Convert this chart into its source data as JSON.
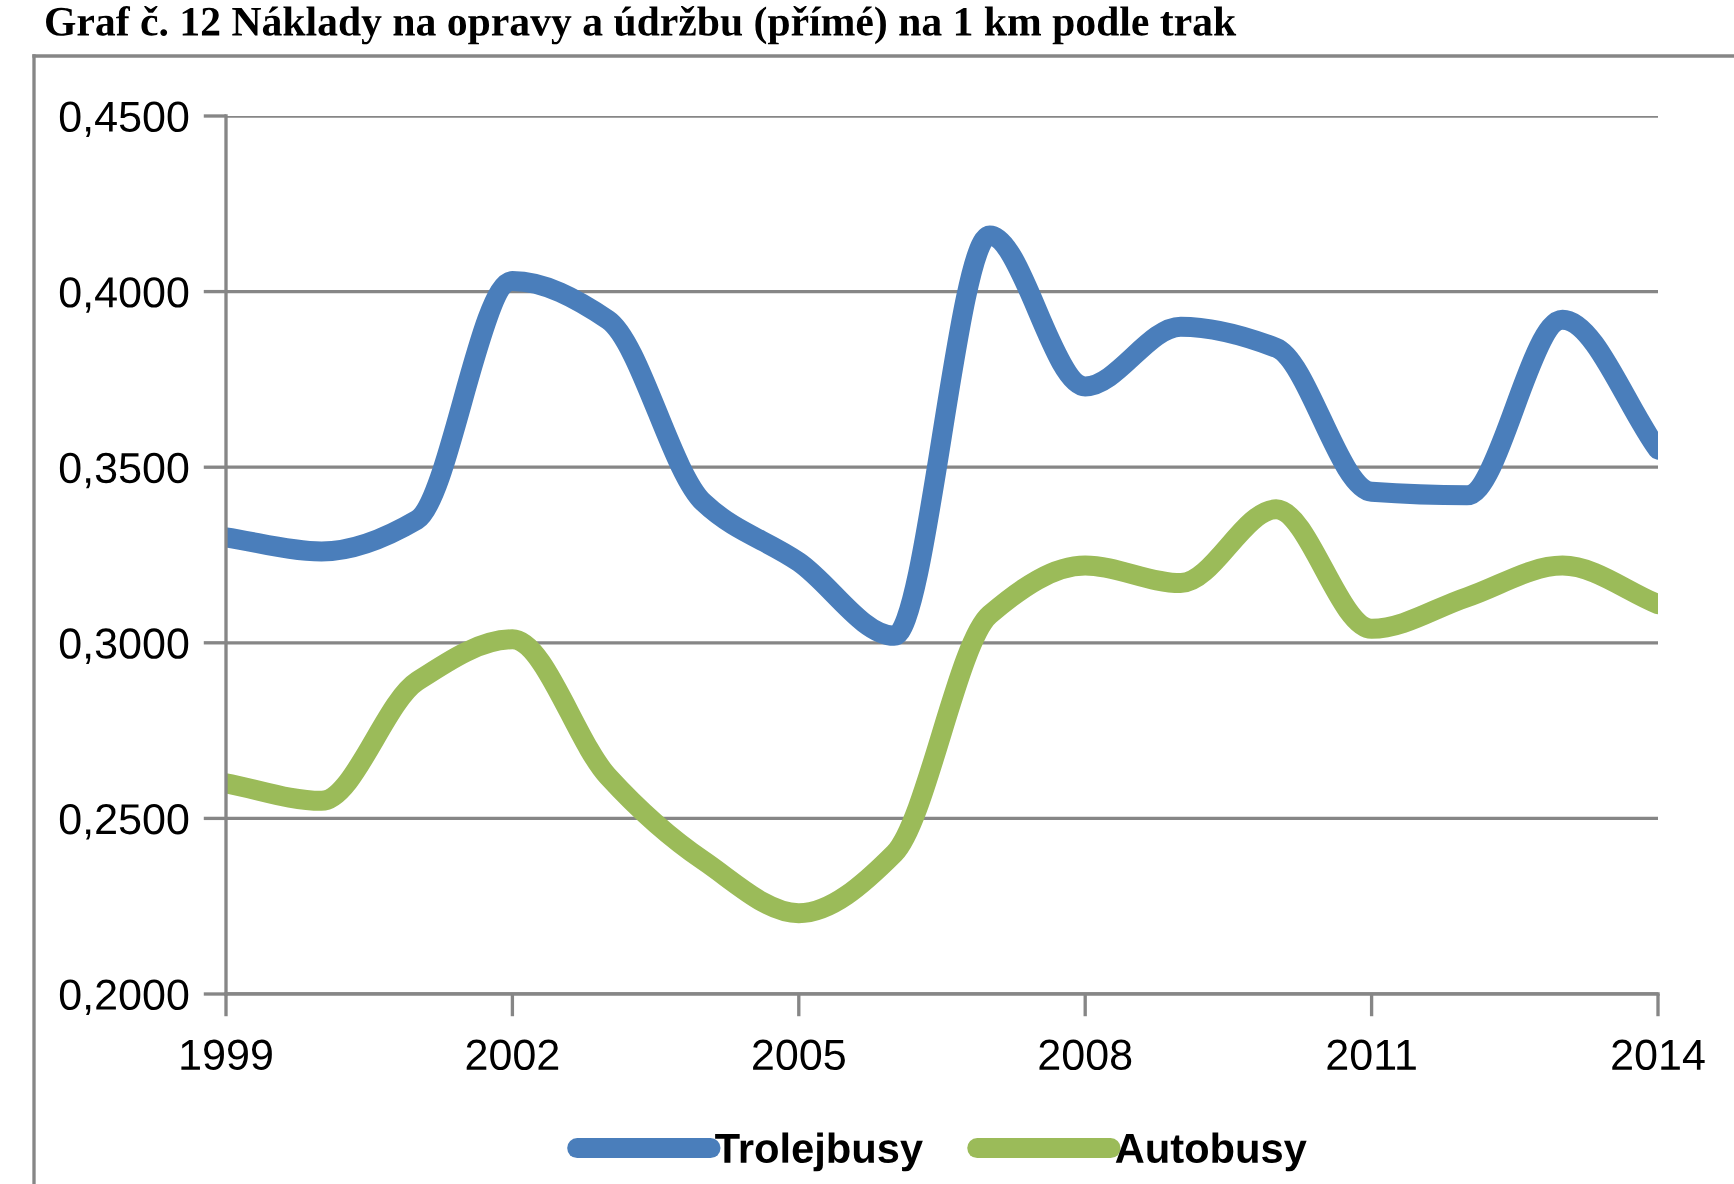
{
  "chart_data": {
    "type": "line",
    "title": "Graf č. 12 Náklady na opravy a údržbu (přímé) na 1 km podle trak",
    "x": [
      1999,
      2000,
      2001,
      2002,
      2003,
      2004,
      2005,
      2006,
      2007,
      2008,
      2009,
      2010,
      2011,
      2012,
      2013,
      2014
    ],
    "series": [
      {
        "name": "Trolejbusy",
        "color": "#4a7ebb",
        "values": [
          0.33,
          0.326,
          0.335,
          0.403,
          0.392,
          0.34,
          0.323,
          0.302,
          0.416,
          0.373,
          0.39,
          0.384,
          0.343,
          0.342,
          0.392,
          0.355
        ]
      },
      {
        "name": "Autobusy",
        "color": "#9bbb59",
        "values": [
          0.26,
          0.255,
          0.289,
          0.301,
          0.262,
          0.238,
          0.223,
          0.24,
          0.308,
          0.322,
          0.317,
          0.338,
          0.304,
          0.313,
          0.322,
          0.311
        ]
      }
    ],
    "xlim": [
      1999,
      2014
    ],
    "xticks": [
      1999,
      2002,
      2005,
      2008,
      2011,
      2014
    ],
    "ylim": [
      0.2,
      0.45
    ],
    "yticks": [
      {
        "value": 0.2,
        "label": "0,2000"
      },
      {
        "value": 0.25,
        "label": "0,2500"
      },
      {
        "value": 0.3,
        "label": "0,3000"
      },
      {
        "value": 0.35,
        "label": "0,3500"
      },
      {
        "value": 0.4,
        "label": "0,4000"
      },
      {
        "value": 0.45,
        "label": "0,4500"
      }
    ],
    "grid": "y",
    "legend": "bottom",
    "marker": "none",
    "line_style": "solid"
  }
}
